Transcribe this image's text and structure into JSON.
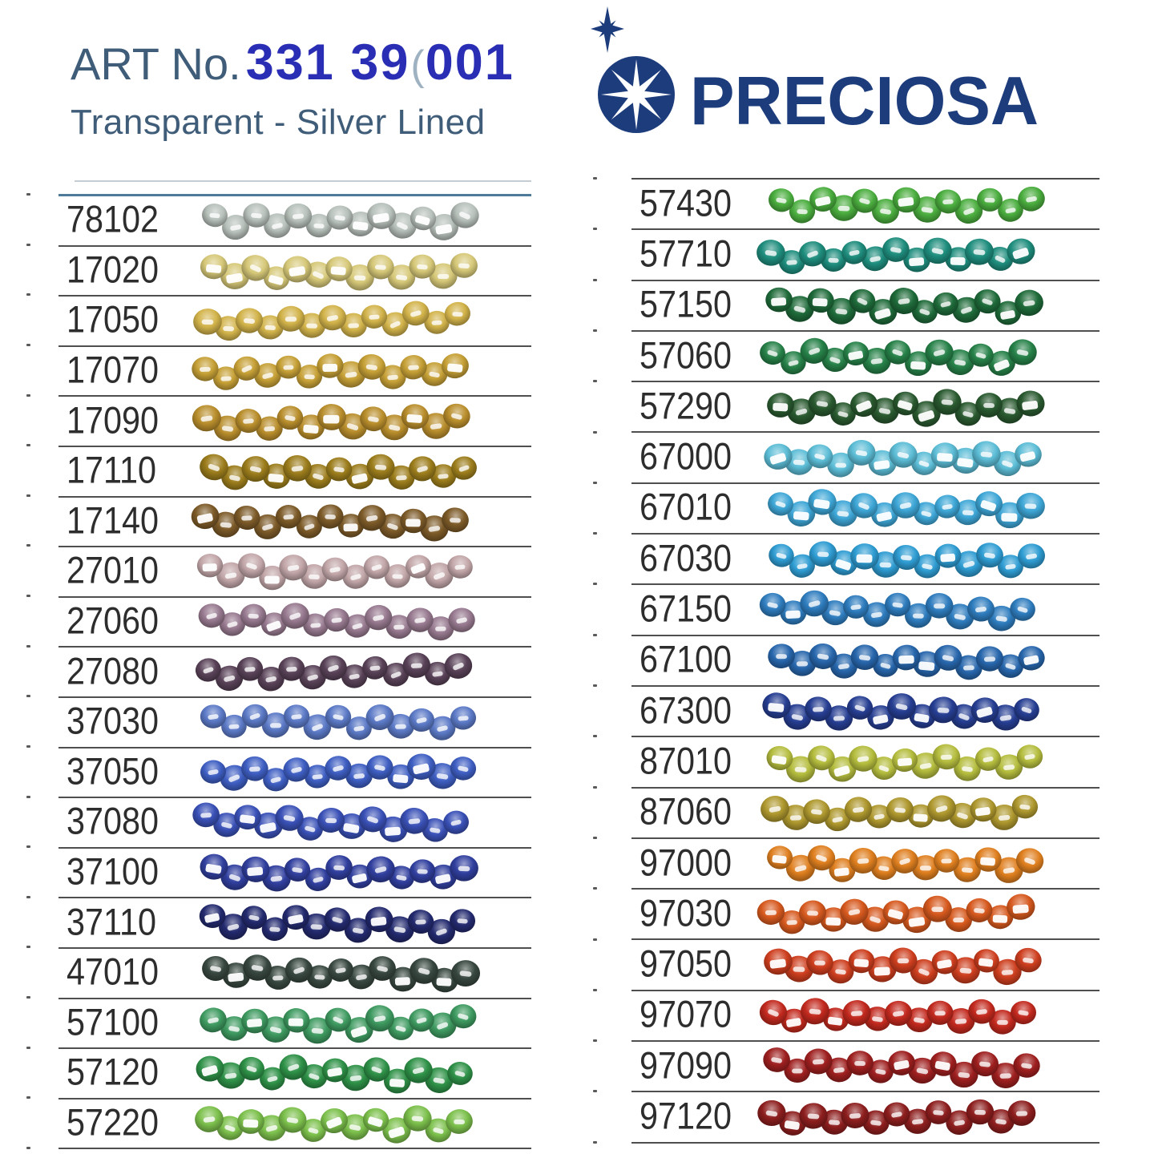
{
  "header": {
    "art_label": "ART No.",
    "art_number_part1": "331 39",
    "art_number_paren": "(",
    "art_number_part2": "001",
    "subtitle": "Transparent - Silver Lined",
    "accent_color": "#2a2eb4",
    "label_color": "#3f5d79"
  },
  "logo": {
    "text": "PRECIOSA",
    "color": "#1d3c7c",
    "icon": "preciosa-star-icon"
  },
  "table": {
    "columns": [
      {
        "name": "left",
        "top_rule_color": "#4e7b99",
        "rows": [
          {
            "code": "78102",
            "color": "#b7c0ba"
          },
          {
            "code": "17020",
            "color": "#d6c878"
          },
          {
            "code": "17050",
            "color": "#d2b34a"
          },
          {
            "code": "17070",
            "color": "#c6a036"
          },
          {
            "code": "17090",
            "color": "#b98e2c"
          },
          {
            "code": "17110",
            "color": "#9c7d1c"
          },
          {
            "code": "17140",
            "color": "#7c5a28"
          },
          {
            "code": "27010",
            "color": "#c2a6a8"
          },
          {
            "code": "27060",
            "color": "#97798f"
          },
          {
            "code": "27080",
            "color": "#584157"
          },
          {
            "code": "37030",
            "color": "#5b79c6"
          },
          {
            "code": "37050",
            "color": "#3e5ec2"
          },
          {
            "code": "37080",
            "color": "#3950b6"
          },
          {
            "code": "37100",
            "color": "#303f9e"
          },
          {
            "code": "37110",
            "color": "#232a6e"
          },
          {
            "code": "47010",
            "color": "#37473f"
          },
          {
            "code": "57100",
            "color": "#3e9a60"
          },
          {
            "code": "57120",
            "color": "#2e9147"
          },
          {
            "code": "57220",
            "color": "#7cc04c"
          }
        ]
      },
      {
        "name": "right",
        "top_rule_color": "#4a4a4a",
        "rows": [
          {
            "code": "57430",
            "color": "#4aad3e"
          },
          {
            "code": "57710",
            "color": "#1e8d7d"
          },
          {
            "code": "57150",
            "color": "#1e6a39"
          },
          {
            "code": "57060",
            "color": "#268148"
          },
          {
            "code": "57290",
            "color": "#29592f"
          },
          {
            "code": "67000",
            "color": "#5cbdd6"
          },
          {
            "code": "67010",
            "color": "#3da6d6"
          },
          {
            "code": "67030",
            "color": "#2e9cd2"
          },
          {
            "code": "67150",
            "color": "#2e7cbe"
          },
          {
            "code": "67100",
            "color": "#2766ac"
          },
          {
            "code": "67300",
            "color": "#263e92"
          },
          {
            "code": "87010",
            "color": "#b5bd3e"
          },
          {
            "code": "87060",
            "color": "#ae982e"
          },
          {
            "code": "97000",
            "color": "#df7f1f"
          },
          {
            "code": "97030",
            "color": "#d6591e"
          },
          {
            "code": "97050",
            "color": "#cd3e1e"
          },
          {
            "code": "97070",
            "color": "#c2291e"
          },
          {
            "code": "97090",
            "color": "#9e1f1f"
          },
          {
            "code": "97120",
            "color": "#8d1e1e"
          }
        ]
      }
    ]
  }
}
